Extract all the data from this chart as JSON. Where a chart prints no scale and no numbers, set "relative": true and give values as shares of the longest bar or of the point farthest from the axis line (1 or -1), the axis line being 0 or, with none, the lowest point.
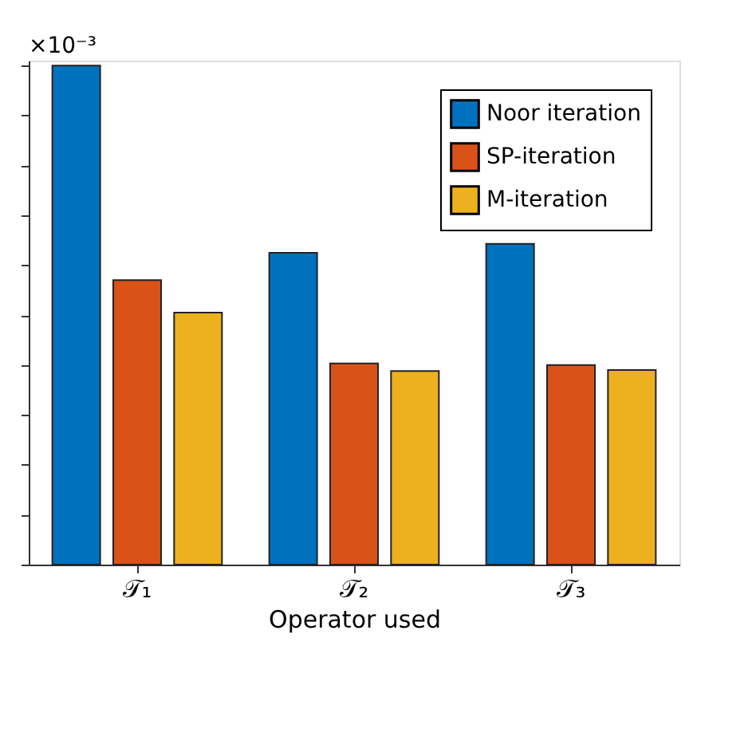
{
  "chart_data": {
    "type": "bar",
    "relative": true,
    "xlabel": "Operator used",
    "categories": [
      "𝒯₁",
      "𝒯₂",
      "𝒯₃"
    ],
    "series": [
      {
        "name": "Noor iteration",
        "color": "#0072bd",
        "values": [
          1,
          0.625,
          0.643
        ]
      },
      {
        "name": "SP-iteration",
        "color": "#d95319",
        "values": [
          0.57,
          0.403,
          0.4
        ]
      },
      {
        "name": "M-iteration",
        "color": "#edb120",
        "values": [
          0.505,
          0.388,
          0.39
        ]
      }
    ],
    "legend": "top right",
    "annotations": [
      "×10⁻³"
    ]
  }
}
